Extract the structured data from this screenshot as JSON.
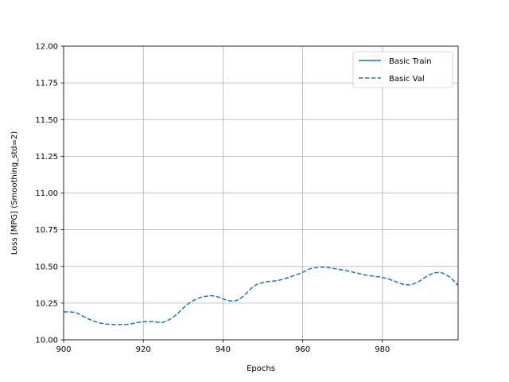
{
  "chart_data": {
    "type": "line",
    "title": "",
    "xlabel": "Epochs",
    "ylabel": "Loss [MPG] (Smoothing_std=2)",
    "xlim": [
      900,
      999
    ],
    "ylim": [
      10.0,
      12.0
    ],
    "xticks": [
      900,
      920,
      940,
      960,
      980
    ],
    "xtick_labels": [
      "900",
      "920",
      "940",
      "960",
      "980"
    ],
    "yticks": [
      10.0,
      10.25,
      10.5,
      10.75,
      11.0,
      11.25,
      11.5,
      11.75,
      12.0
    ],
    "ytick_labels": [
      "10.00",
      "10.25",
      "10.50",
      "10.75",
      "11.00",
      "11.25",
      "11.50",
      "11.75",
      "12.00"
    ],
    "grid": true,
    "legend_position": "top-right",
    "series": [
      {
        "name": "Basic Train",
        "color": "#1f77b4",
        "line_style": "solid",
        "x": [],
        "y": []
      },
      {
        "name": "Basic Val",
        "color": "#1f77b4",
        "line_style": "dashed",
        "x": [
          900,
          903,
          906,
          909,
          912,
          916,
          919,
          922,
          925,
          928,
          931,
          934,
          937,
          939,
          941,
          943,
          945,
          948,
          951,
          954,
          957,
          960,
          962,
          965,
          968,
          972,
          976,
          980,
          983,
          985,
          987,
          989,
          991,
          993,
          995,
          997,
          999
        ],
        "y": [
          10.19,
          10.185,
          10.145,
          10.115,
          10.105,
          10.105,
          10.12,
          10.125,
          10.12,
          10.165,
          10.24,
          10.285,
          10.3,
          10.29,
          10.27,
          10.265,
          10.295,
          10.37,
          10.395,
          10.405,
          10.43,
          10.46,
          10.485,
          10.495,
          10.485,
          10.465,
          10.44,
          10.425,
          10.4,
          10.38,
          10.375,
          10.395,
          10.43,
          10.455,
          10.455,
          10.425,
          10.37
        ]
      }
    ]
  }
}
